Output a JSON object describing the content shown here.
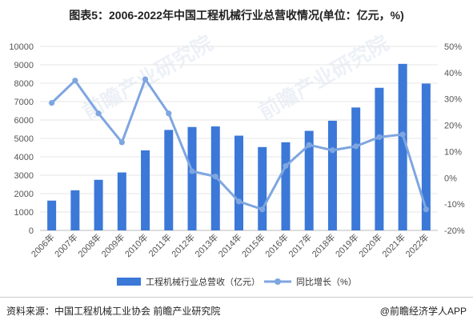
{
  "title": "图表5：2006-2022年中国工程机械行业总营收情况(单位：亿元，%)",
  "source": "资料来源：中国工程机械工业协会 前瞻产业研究院",
  "brand": "@前瞻经济学人APP",
  "watermark": "前瞻产业研究院",
  "colors": {
    "bar": "#3B78D8",
    "line": "#7EA6E0",
    "grid": "#E5E5E5"
  },
  "chart_data": {
    "type": "bar",
    "categories": [
      "2006年",
      "2007年",
      "2008年",
      "2009年",
      "2010年",
      "2011年",
      "2012年",
      "2013年",
      "2014年",
      "2015年",
      "2016年",
      "2017年",
      "2018年",
      "2019年",
      "2020年",
      "2021年",
      "2022年"
    ],
    "series": [
      {
        "name": "工程机械行业总营收（亿元）",
        "type": "bar",
        "axis": "left",
        "values": [
          1620,
          2180,
          2750,
          3150,
          4350,
          5460,
          5620,
          5650,
          5150,
          4530,
          4790,
          5410,
          5960,
          6680,
          7750,
          9050,
          7980
        ]
      },
      {
        "name": "同比增长（%）",
        "type": "line",
        "axis": "right",
        "values": [
          28.5,
          37,
          24.5,
          13.5,
          37.5,
          24.5,
          2.5,
          0.5,
          -9,
          -12,
          4.5,
          12.5,
          10.5,
          12,
          15.5,
          16.5,
          -12
        ]
      }
    ],
    "ylim": [
      0,
      10000
    ],
    "y_ticks": [
      "0",
      "1000",
      "2000",
      "3000",
      "4000",
      "5000",
      "6000",
      "7000",
      "8000",
      "9000",
      "10000"
    ],
    "y2lim": [
      -20,
      50
    ],
    "y2_ticks": [
      "-20%",
      "-10%",
      "0%",
      "10%",
      "20%",
      "30%",
      "40%",
      "50%"
    ],
    "grid": true,
    "legend": "bottom"
  }
}
